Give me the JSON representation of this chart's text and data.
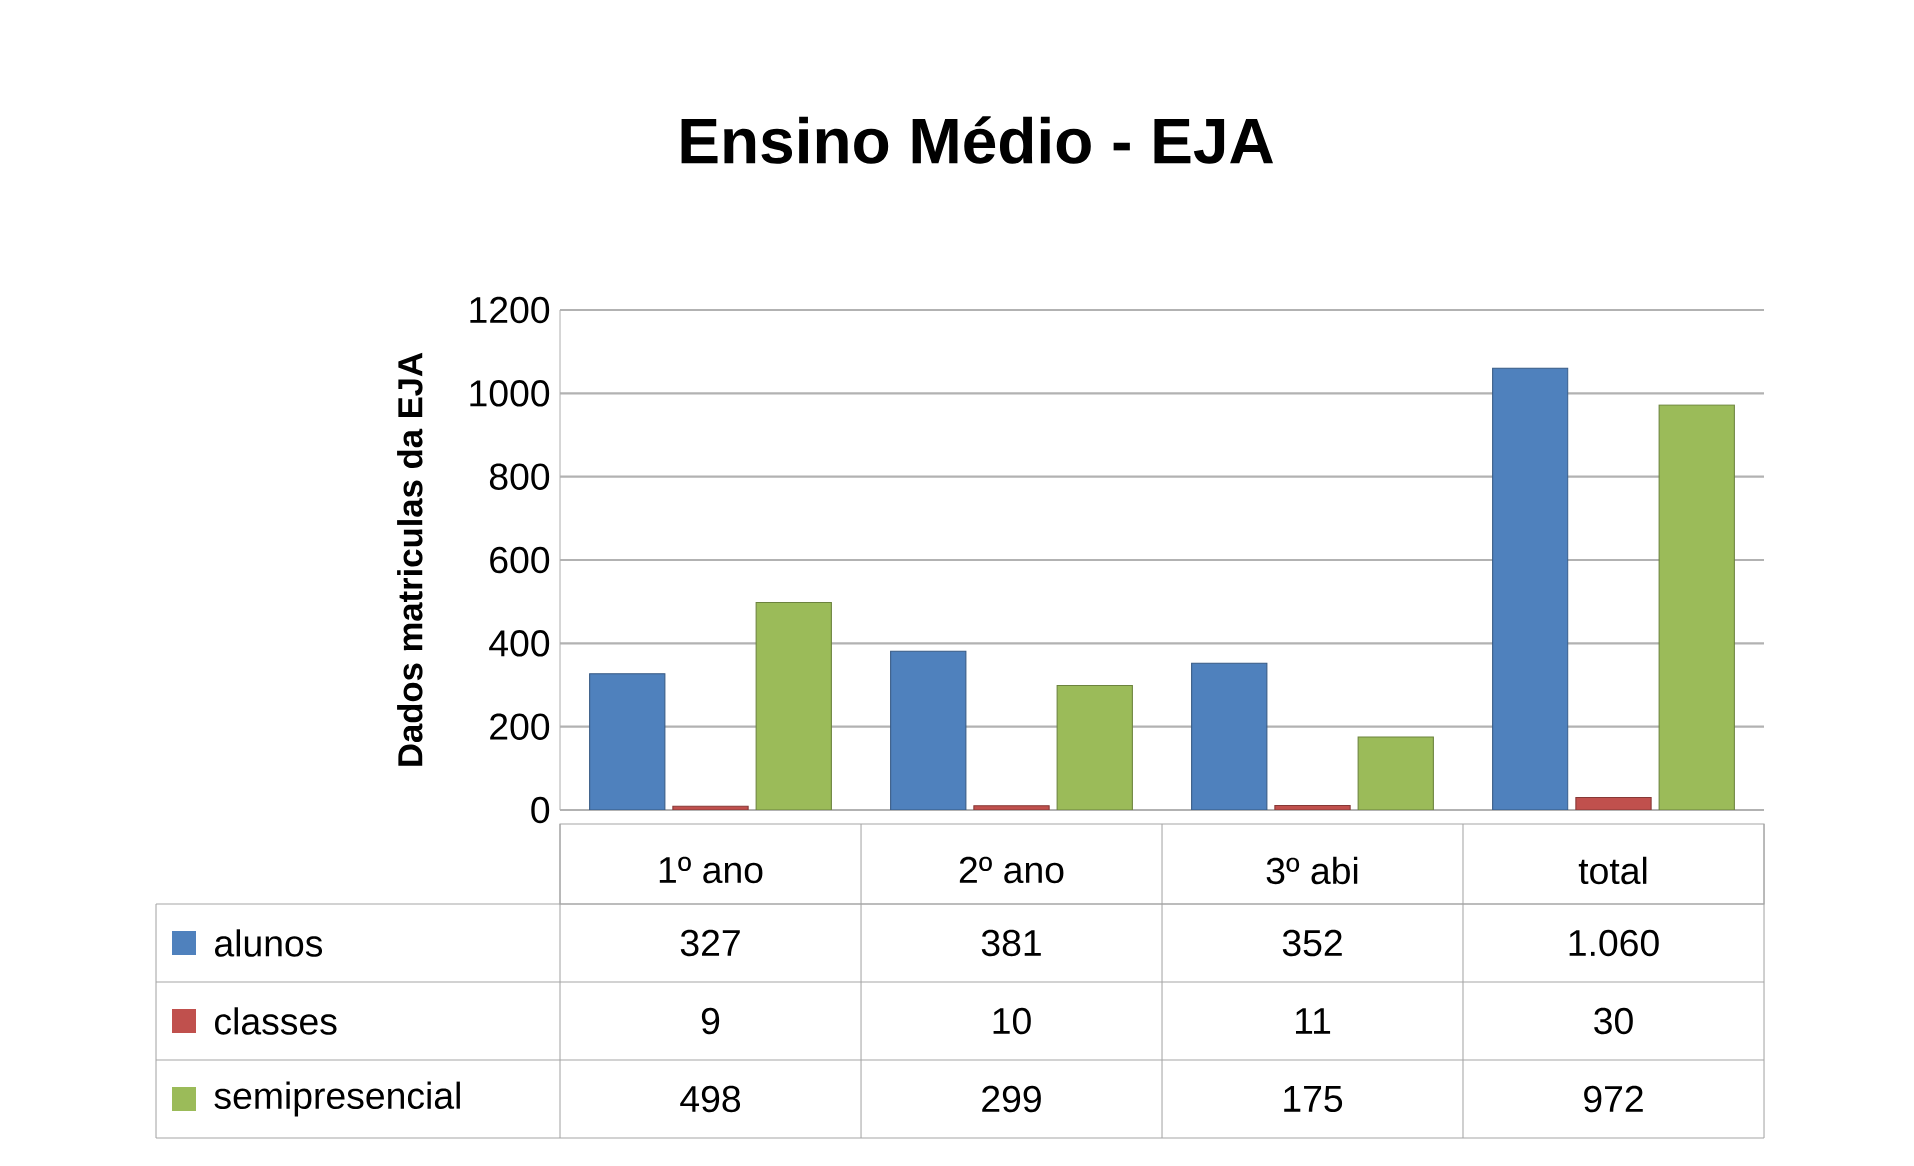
{
  "chart_data": {
    "type": "bar",
    "title": "Ensino Médio - EJA",
    "ylabel": "Dados matriculas da EJA",
    "categories": [
      "1º ano",
      "2º ano",
      "3º abi",
      "total"
    ],
    "series": [
      {
        "name": "alunos",
        "color": "#4f81bd",
        "values": [
          327,
          381,
          352,
          1060
        ],
        "value_labels": [
          "327",
          "381",
          "352",
          "1.060"
        ]
      },
      {
        "name": "classes",
        "color": "#c0504d",
        "values": [
          9,
          10,
          11,
          30
        ],
        "value_labels": [
          "9",
          "10",
          "11",
          "30"
        ]
      },
      {
        "name": "semipresencial",
        "color": "#9bbb59",
        "values": [
          498,
          299,
          175,
          972
        ],
        "value_labels": [
          "498",
          "299",
          "175",
          "972"
        ]
      }
    ],
    "ylim": [
      0,
      1200
    ],
    "yticks": [
      0,
      200,
      400,
      600,
      800,
      1000,
      1200
    ],
    "grid": "y",
    "legend": "bottom"
  }
}
